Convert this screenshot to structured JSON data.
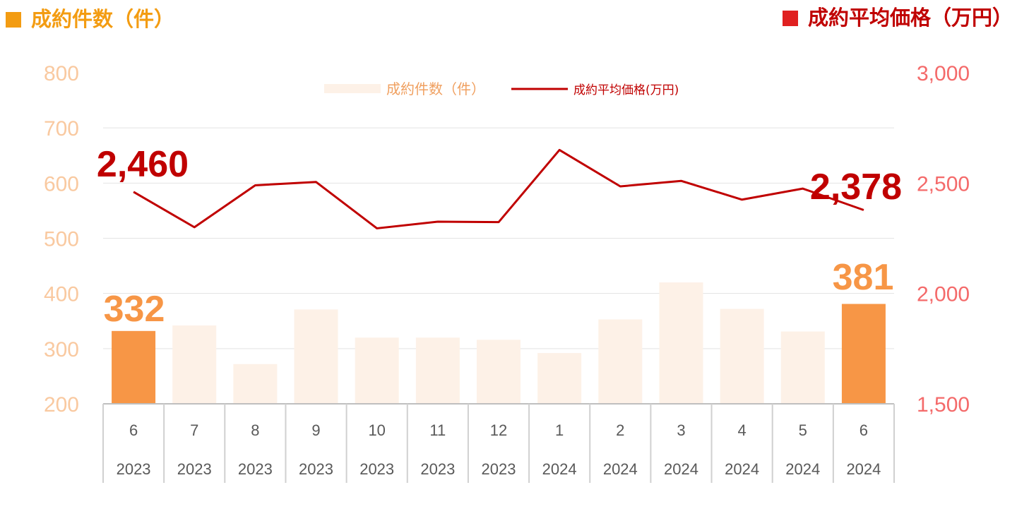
{
  "header": {
    "left_title": "成約件数（件）",
    "right_title": "成約平均価格（万円）"
  },
  "colors": {
    "left_axis": "#f9c9a0",
    "right_axis": "#f46a6a",
    "bar_light": "#fdf1e7",
    "bar_highlight": "#f79646",
    "line": "#c00000",
    "title_left": "#f39c12",
    "title_right": "#c00000"
  },
  "chart_data": {
    "type": "bar+line",
    "categories": [
      {
        "month": "6",
        "year": "2023"
      },
      {
        "month": "7",
        "year": "2023"
      },
      {
        "month": "8",
        "year": "2023"
      },
      {
        "month": "9",
        "year": "2023"
      },
      {
        "month": "10",
        "year": "2023"
      },
      {
        "month": "11",
        "year": "2023"
      },
      {
        "month": "12",
        "year": "2023"
      },
      {
        "month": "1",
        "year": "2024"
      },
      {
        "month": "2",
        "year": "2024"
      },
      {
        "month": "3",
        "year": "2024"
      },
      {
        "month": "4",
        "year": "2024"
      },
      {
        "month": "5",
        "year": "2024"
      },
      {
        "month": "6",
        "year": "2024"
      }
    ],
    "series": [
      {
        "name": "成約件数（件）",
        "type": "bar",
        "axis": "left",
        "values": [
          332,
          342,
          272,
          371,
          320,
          320,
          316,
          292,
          353,
          420,
          372,
          331,
          381
        ],
        "highlight": [
          true,
          false,
          false,
          false,
          false,
          false,
          false,
          false,
          false,
          false,
          false,
          false,
          true
        ]
      },
      {
        "name": "成約平均価格(万円)",
        "type": "line",
        "axis": "right",
        "values": [
          2460,
          2300,
          2490,
          2505,
          2295,
          2325,
          2323,
          2650,
          2485,
          2510,
          2425,
          2475,
          2378
        ]
      }
    ],
    "y_left": {
      "min": 200,
      "max": 800,
      "ticks": [
        "200",
        "300",
        "400",
        "500",
        "600",
        "700",
        "800"
      ]
    },
    "y_right": {
      "min": 1500,
      "max": 3000,
      "ticks": [
        "1,500",
        "2,000",
        "2,500",
        "3,000"
      ]
    },
    "annotations": {
      "bar_first": "332",
      "bar_last": "381",
      "line_first": "2,460",
      "line_last": "2,378"
    },
    "legend": {
      "position": "top-center"
    },
    "grid": true
  }
}
